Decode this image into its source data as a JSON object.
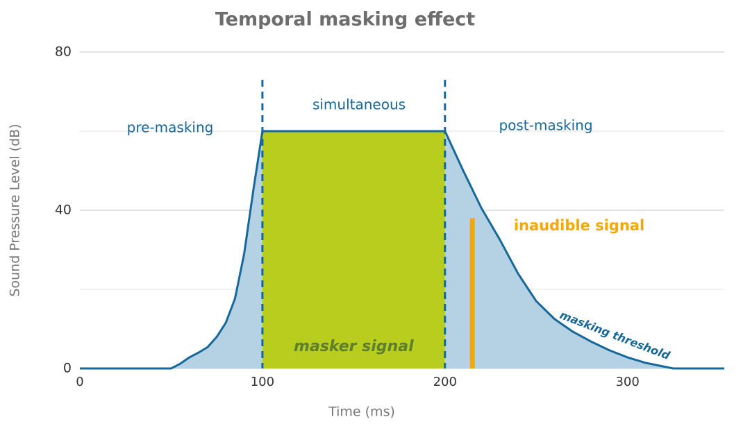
{
  "chart_data": {
    "type": "area",
    "title": "Temporal masking effect",
    "xlabel": "Time (ms)",
    "ylabel": "Sound Pressure Level (dB)",
    "xlim": [
      0,
      353
    ],
    "ylim": [
      0,
      80
    ],
    "xticks": [
      0,
      100,
      200,
      300
    ],
    "yticks": [
      0,
      40,
      80
    ],
    "minor_yticks": [
      20,
      60
    ],
    "grid": true,
    "series": [
      {
        "name": "masking threshold",
        "color": "#16679a",
        "fill": "#b4d2e4",
        "x": [
          0,
          50,
          55,
          60,
          65,
          70,
          75,
          80,
          85,
          90,
          95,
          100,
          200,
          210,
          220,
          230,
          240,
          250,
          260,
          270,
          280,
          290,
          300,
          310,
          325,
          353
        ],
        "values": [
          0,
          0,
          1.2,
          2.8,
          4,
          5.4,
          8,
          11.6,
          17.7,
          29,
          45,
          60,
          60,
          50,
          40.5,
          32.6,
          24,
          17,
          12.5,
          9.3,
          6.8,
          4.6,
          2.8,
          1.4,
          0,
          0
        ]
      }
    ],
    "masker": {
      "name": "masker signal",
      "color": "#b9cd1e",
      "x": [
        100,
        200
      ],
      "value": 60
    },
    "signal": {
      "name": "inaudible signal",
      "color": "#f5a800",
      "x": 215,
      "value": 38
    },
    "annotations": [
      "pre-masking",
      "simultaneous",
      "post-masking"
    ]
  }
}
